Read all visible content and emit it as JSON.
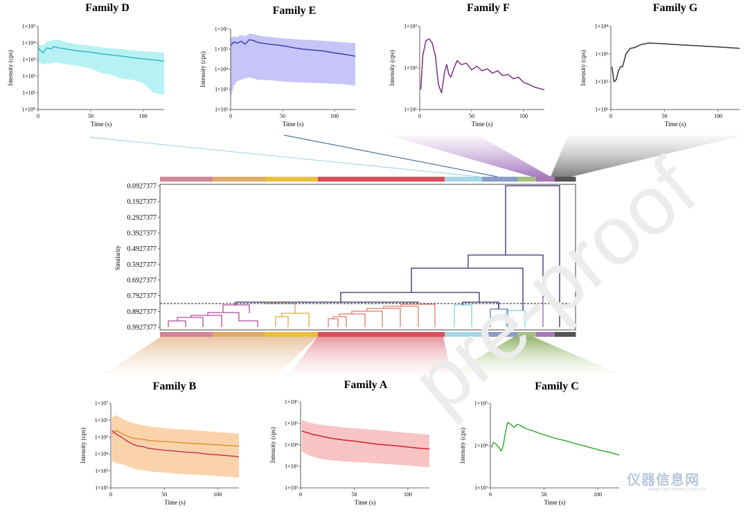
{
  "watermark": {
    "text": "仪器信息网",
    "url": "www.instrument.com.cn"
  },
  "chart_data": [
    {
      "type": "line",
      "title": "Family D",
      "xlabel": "Time (s)",
      "ylabel": "Intensity (cps)",
      "yscale": "log",
      "ylim": [
        1,
        100000
      ],
      "xlim": [
        0,
        120
      ],
      "x_ticks": [
        0,
        50,
        100
      ],
      "y_tick_labels": [
        "1×10⁰",
        "1×10¹",
        "1×10²",
        "1×10³",
        "1×10⁴",
        "1×10⁵"
      ],
      "color": "#35b8c4",
      "band_color": "#9eeef0",
      "x": [
        0,
        2,
        5,
        8,
        12,
        16,
        20,
        25,
        30,
        40,
        50,
        60,
        70,
        80,
        90,
        100,
        110,
        120
      ],
      "y": [
        5000,
        3500,
        2500,
        5000,
        4500,
        6000,
        5000,
        4500,
        4000,
        3200,
        2800,
        2200,
        1900,
        1600,
        1300,
        1100,
        950,
        800
      ],
      "band_upper": [
        9000,
        8000,
        7000,
        12000,
        13000,
        16000,
        15000,
        12000,
        10000,
        8000,
        7000,
        5500,
        4800,
        4200,
        3600,
        3200,
        2900,
        2500
      ],
      "band_lower": [
        700,
        600,
        500,
        600,
        550,
        700,
        600,
        550,
        500,
        400,
        300,
        150,
        120,
        70,
        60,
        40,
        10,
        8
      ]
    },
    {
      "type": "line",
      "title": "Family E",
      "xlabel": "Time (s)",
      "ylabel": "Intensity (cps)",
      "yscale": "log",
      "ylim": [
        100,
        1000000
      ],
      "xlim": [
        0,
        120
      ],
      "x_ticks": [
        0,
        50,
        100
      ],
      "y_tick_labels": [
        "1×10²",
        "1×10³",
        "1×10⁴",
        "1×10⁵",
        "1×10⁶"
      ],
      "color": "#3d3fb0",
      "band_color": "#b4b2f4",
      "x": [
        0,
        3,
        6,
        10,
        14,
        18,
        22,
        26,
        30,
        40,
        50,
        60,
        70,
        80,
        90,
        100,
        110,
        120
      ],
      "y": [
        150000,
        230000,
        200000,
        250000,
        180000,
        300000,
        270000,
        220000,
        200000,
        170000,
        150000,
        120000,
        100000,
        90000,
        80000,
        65000,
        55000,
        45000
      ],
      "band_upper": [
        350000,
        450000,
        400000,
        500000,
        450000,
        600000,
        550000,
        500000,
        450000,
        400000,
        350000,
        320000,
        300000,
        280000,
        260000,
        240000,
        220000,
        200000
      ],
      "band_lower": [
        400,
        1500,
        2500,
        3000,
        3500,
        4000,
        3500,
        3000,
        3000,
        2800,
        2500,
        2300,
        2200,
        2100,
        2000,
        1900,
        1800,
        1500
      ]
    },
    {
      "type": "line",
      "title": "Family F",
      "xlabel": "Time (s)",
      "ylabel": "Intensity (cps)",
      "yscale": "log",
      "ylim": [
        10,
        1000
      ],
      "xlim": [
        0,
        120
      ],
      "x_ticks": [
        0,
        50,
        100
      ],
      "y_tick_labels": [
        "1×10¹",
        "1×10²",
        "1×10³"
      ],
      "color": "#7d2a86",
      "x": [
        1,
        3,
        6,
        9,
        12,
        15,
        18,
        21,
        24,
        26,
        28,
        30,
        33,
        36,
        40,
        45,
        50,
        55,
        60,
        65,
        70,
        75,
        80,
        85,
        90,
        95,
        100,
        105,
        110,
        115,
        120
      ],
      "y": [
        30,
        200,
        450,
        500,
        400,
        200,
        40,
        25,
        80,
        120,
        70,
        60,
        100,
        150,
        120,
        130,
        90,
        110,
        85,
        95,
        75,
        85,
        65,
        70,
        55,
        60,
        45,
        40,
        35,
        32,
        30
      ]
    },
    {
      "type": "line",
      "title": "Family G",
      "xlabel": "Time (s)",
      "ylabel": "Intensity (cps)",
      "yscale": "log",
      "ylim": [
        10,
        10000
      ],
      "xlim": [
        0,
        120
      ],
      "x_ticks": [
        0,
        50,
        100
      ],
      "y_tick_labels": [
        "1×10¹",
        "1×10²",
        "1×10³",
        "1×10⁴"
      ],
      "color": "#333333",
      "x": [
        1,
        3,
        5,
        7,
        9,
        11,
        14,
        18,
        22,
        28,
        35,
        45,
        60,
        80,
        100,
        120
      ],
      "y": [
        350,
        100,
        120,
        250,
        350,
        350,
        1000,
        1600,
        1700,
        2200,
        2500,
        2400,
        2200,
        2000,
        1800,
        1600
      ]
    },
    {
      "type": "line",
      "title": "Family B",
      "xlabel": "Time (s)",
      "ylabel": "Intensity (cps)",
      "yscale": "log",
      "ylim": [
        100,
        10000000
      ],
      "xlim": [
        0,
        120
      ],
      "x_ticks": [
        0,
        50,
        100
      ],
      "y_tick_labels": [
        "1×10²",
        "1×10³",
        "1×10⁴",
        "1×10⁵",
        "1×10⁶",
        "1×10⁷"
      ],
      "color": "#c03a5a",
      "color2": "#e08a30",
      "band_color": "#f8c48e",
      "x": [
        1,
        5,
        10,
        15,
        20,
        25,
        30,
        35,
        40,
        50,
        60,
        70,
        80,
        90,
        100,
        110,
        120
      ],
      "y": [
        250000,
        150000,
        100000,
        60000,
        40000,
        30000,
        28000,
        22000,
        20000,
        17000,
        15000,
        13000,
        12000,
        10000,
        9000,
        8000,
        7000
      ],
      "y2": [
        150000,
        250000,
        170000,
        120000,
        90000,
        80000,
        75000,
        65000,
        60000,
        55000,
        50000,
        45000,
        42000,
        38000,
        35000,
        32000,
        30000
      ],
      "band_upper": [
        1500000,
        2000000,
        1300000,
        900000,
        700000,
        600000,
        500000,
        450000,
        400000,
        350000,
        300000,
        280000,
        250000,
        220000,
        200000,
        180000,
        160000
      ],
      "band_lower": [
        4000,
        3000,
        2500,
        2000,
        1500,
        1200,
        1100,
        1000,
        900,
        800,
        700,
        650,
        600,
        550,
        500,
        450,
        400
      ]
    },
    {
      "type": "line",
      "title": "Family A",
      "xlabel": "Time (s)",
      "ylabel": "Intensity (cps)",
      "yscale": "log",
      "ylim": [
        100,
        1000000
      ],
      "xlim": [
        0,
        120
      ],
      "x_ticks": [
        0,
        50,
        100
      ],
      "y_tick_labels": [
        "1×10²",
        "1×10³",
        "1×10⁴",
        "1×10⁵",
        "1×10⁶"
      ],
      "color": "#d02030",
      "band_color": "#f6b0b0",
      "x": [
        1,
        4,
        8,
        12,
        16,
        20,
        25,
        30,
        40,
        50,
        60,
        70,
        80,
        90,
        100,
        110,
        120
      ],
      "y": [
        45000,
        40000,
        35000,
        30000,
        28000,
        25000,
        22000,
        20000,
        17000,
        15000,
        13000,
        11000,
        10000,
        9000,
        8000,
        7000,
        6500
      ],
      "band_upper": [
        150000,
        130000,
        110000,
        100000,
        90000,
        85000,
        80000,
        75000,
        65000,
        60000,
        55000,
        50000,
        45000,
        40000,
        36000,
        33000,
        30000
      ],
      "band_lower": [
        5000,
        4000,
        3200,
        2800,
        2400,
        2200,
        2000,
        1900,
        1700,
        1600,
        1500,
        1400,
        1300,
        1200,
        1100,
        1000,
        900
      ]
    },
    {
      "type": "line",
      "title": "Family C",
      "xlabel": "Time (s)",
      "ylabel": "Intensity (cps)",
      "yscale": "log",
      "ylim": [
        1000,
        100000
      ],
      "xlim": [
        0,
        120
      ],
      "x_ticks": [
        0,
        50,
        100
      ],
      "y_tick_labels": [
        "1×10³",
        "1×10⁴",
        "1×10⁵"
      ],
      "color": "#3aaa3a",
      "x": [
        1,
        3,
        5,
        8,
        10,
        12,
        14,
        16,
        19,
        22,
        25,
        28,
        32,
        40,
        50,
        60,
        70,
        80,
        90,
        100,
        110,
        120
      ],
      "y": [
        9000,
        12000,
        11000,
        9000,
        7500,
        10000,
        20000,
        35000,
        32000,
        27000,
        32000,
        30000,
        26000,
        22000,
        18000,
        15000,
        13000,
        11000,
        9500,
        8000,
        7000,
        6000
      ]
    },
    {
      "type": "dendrogram",
      "ylabel": "Similarity",
      "y_tick_labels": [
        "0.0927377",
        "0.1927377",
        "0.2927377",
        "0.3927377",
        "0.4927377",
        "0.5927377",
        "0.6927377",
        "0.7927377",
        "0.8927377",
        "0.9927377"
      ],
      "y_ticks": [
        0.0927377,
        0.1927377,
        0.2927377,
        0.3927377,
        0.4927377,
        0.5927377,
        0.6927377,
        0.7927377,
        0.8927377,
        0.9927377
      ],
      "cut_threshold": 0.8527,
      "family_bands": [
        {
          "family": "B",
          "start": 0.0,
          "end": 0.38,
          "colors": [
            "#d1869a",
            "#e0ac6c",
            "#e8c040"
          ]
        },
        {
          "family": "A",
          "start": 0.38,
          "end": 0.685,
          "colors": [
            "#d6505c"
          ]
        },
        {
          "family": "D",
          "start": 0.685,
          "end": 0.775,
          "colors": [
            "#a6d6e4"
          ]
        },
        {
          "family": "E",
          "start": 0.775,
          "end": 0.86,
          "colors": [
            "#8a9cc8"
          ]
        },
        {
          "family": "C",
          "start": 0.86,
          "end": 0.905,
          "colors": [
            "#a4be86"
          ]
        },
        {
          "family": "F",
          "start": 0.905,
          "end": 0.95,
          "colors": [
            "#a878b8"
          ]
        },
        {
          "family": "G",
          "start": 0.95,
          "end": 1.0,
          "colors": [
            "#555555"
          ]
        }
      ]
    }
  ]
}
